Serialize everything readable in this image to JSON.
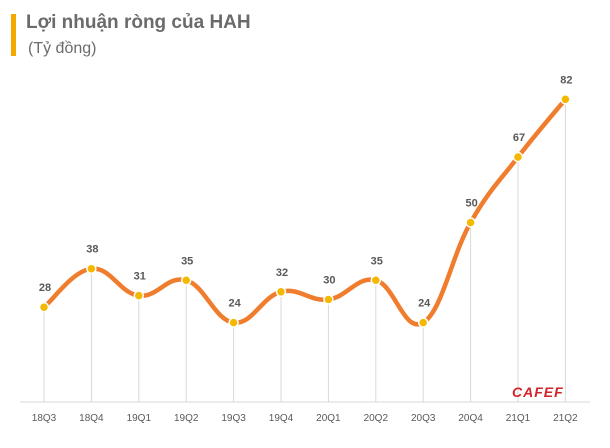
{
  "title": "Lợi nhuận ròng của HAH",
  "subtitle": "(Tỷ đồng)",
  "logo_text": "CAFEF",
  "colors": {
    "line": "#f07d2d",
    "marker": "#f5b800",
    "title_bar": "#f5a800",
    "text": "#6b6b6b",
    "gridline": "#d9d9d9",
    "logo": "#d2232a"
  },
  "chart_data": {
    "type": "line",
    "categories": [
      "18Q3",
      "18Q4",
      "19Q1",
      "19Q2",
      "19Q3",
      "19Q4",
      "20Q1",
      "20Q2",
      "20Q3",
      "20Q4",
      "21Q1",
      "21Q2"
    ],
    "series": [
      {
        "values": [
          28,
          38,
          31,
          35,
          24,
          32,
          30,
          35,
          24,
          50,
          67,
          82
        ]
      }
    ],
    "data_labels": true,
    "smooth": true,
    "ylim": [
      0,
      90
    ],
    "grid": "vertical drop lines"
  }
}
